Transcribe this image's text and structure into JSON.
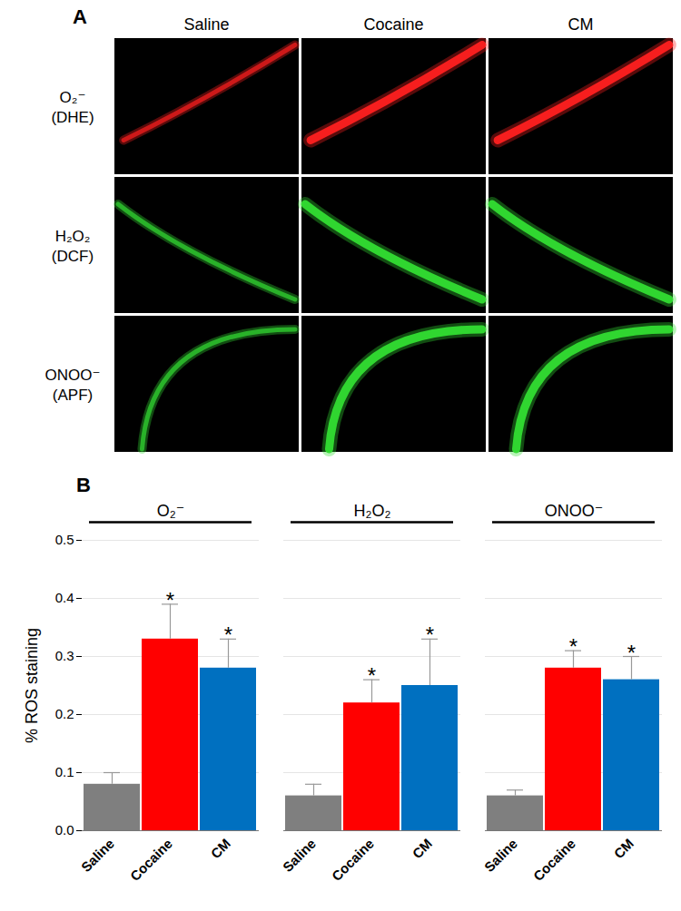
{
  "panel_a": {
    "label": "A",
    "columns": [
      "Saline",
      "Cocaine",
      "CM"
    ],
    "rows": [
      {
        "label": "O₂⁻",
        "probe": "(DHE)",
        "color": "#ff2020"
      },
      {
        "label": "H₂O₂",
        "probe": "(DCF)",
        "color": "#33dd33"
      },
      {
        "label": "ONOO⁻",
        "probe": "(APF)",
        "color": "#33dd33"
      }
    ]
  },
  "chart_data": {
    "type": "bar",
    "panel_label": "B",
    "y_label": "% ROS staining",
    "ylim": [
      0,
      0.5
    ],
    "yticks": [
      {
        "value": 0,
        "label": "0.0"
      },
      0.1,
      0.2,
      0.3,
      0.4,
      0.5
    ],
    "grid": true,
    "colors": [
      "#7f7f7f",
      "#ff0000",
      "#0070c0"
    ],
    "groups": [
      {
        "name": "O₂⁻",
        "categories": [
          "Saline",
          "Cocaine",
          "CM"
        ],
        "values": [
          0.08,
          0.33,
          0.28
        ],
        "errors": [
          0.02,
          0.06,
          0.05
        ],
        "significance": [
          null,
          "*",
          "*"
        ]
      },
      {
        "name": "H₂O₂",
        "categories": [
          "Saline",
          "Cocaine",
          "CM"
        ],
        "values": [
          0.06,
          0.22,
          0.25
        ],
        "errors": [
          0.02,
          0.04,
          0.08
        ],
        "significance": [
          null,
          "*",
          "*"
        ]
      },
      {
        "name": "ONOO⁻",
        "categories": [
          "Saline",
          "Cocaine",
          "CM"
        ],
        "values": [
          0.06,
          0.28,
          0.26
        ],
        "errors": [
          0.01,
          0.03,
          0.04
        ],
        "significance": [
          null,
          "*",
          "*"
        ]
      }
    ]
  }
}
